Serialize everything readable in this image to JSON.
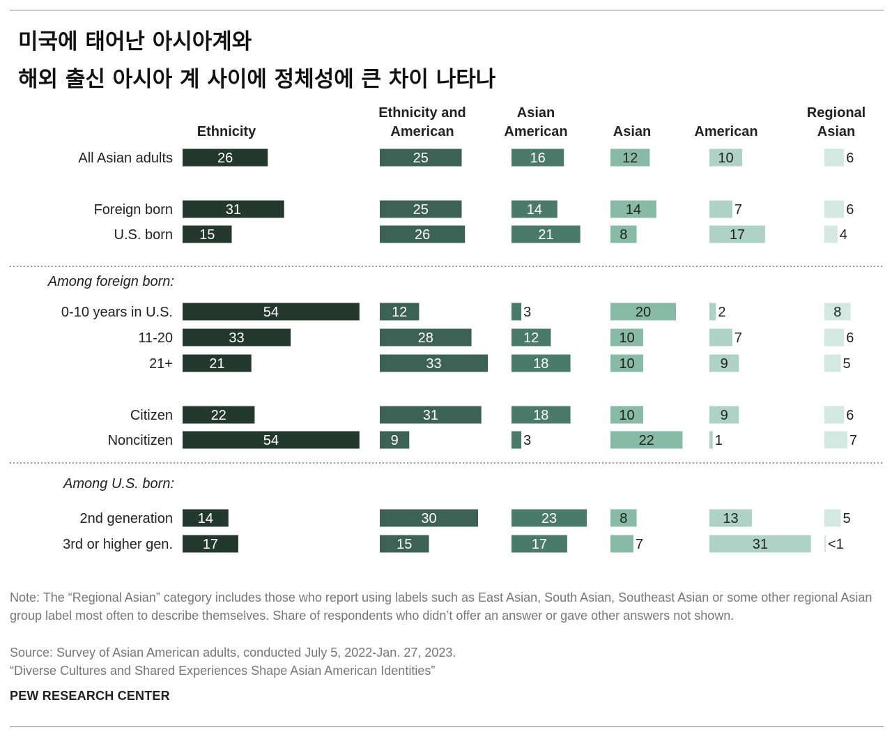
{
  "title_line1": "미국에 태어난 아시아계와",
  "title_line2": "해외 출신 아시아 계 사이에 정체성에 큰 차이 나타나",
  "chart_data": {
    "type": "bar",
    "columns": [
      {
        "name": "Ethnicity",
        "lines": [
          "Ethnicity"
        ],
        "color": "#23392f"
      },
      {
        "name": "Ethnicity and American",
        "lines": [
          "Ethnicity and",
          "American"
        ],
        "color": "#3c6155"
      },
      {
        "name": "Asian American",
        "lines": [
          "Asian",
          "American"
        ],
        "color": "#4a7a6a"
      },
      {
        "name": "Asian",
        "lines": [
          "Asian"
        ],
        "color": "#87baa7"
      },
      {
        "name": "American",
        "lines": [
          "American"
        ],
        "color": "#aed3c6"
      },
      {
        "name": "Regional Asian",
        "lines": [
          "Regional",
          "Asian"
        ],
        "color": "#d3e8e1"
      }
    ],
    "groups": [
      "",
      "",
      "Among foreign born:",
      "",
      "Among U.S. born:"
    ],
    "rows": [
      {
        "label": "All Asian adults",
        "group": 0,
        "values": [
          26,
          25,
          16,
          12,
          10,
          6
        ],
        "labels": [
          "26",
          "25",
          "16",
          "12",
          "10",
          "6"
        ]
      },
      {
        "label": "Foreign born",
        "group": 1,
        "values": [
          31,
          25,
          14,
          14,
          7,
          6
        ],
        "labels": [
          "31",
          "25",
          "14",
          "14",
          "7",
          "6"
        ]
      },
      {
        "label": "U.S. born",
        "group": 1,
        "values": [
          15,
          26,
          21,
          8,
          17,
          4
        ],
        "labels": [
          "15",
          "26",
          "21",
          "8",
          "17",
          "4"
        ]
      },
      {
        "label": "0-10 years in U.S.",
        "group": 2,
        "values": [
          54,
          12,
          3,
          20,
          2,
          8
        ],
        "labels": [
          "54",
          "12",
          "3",
          "20",
          "2",
          "8"
        ]
      },
      {
        "label": "11-20",
        "group": 2,
        "values": [
          33,
          28,
          12,
          10,
          7,
          6
        ],
        "labels": [
          "33",
          "28",
          "12",
          "10",
          "7",
          "6"
        ]
      },
      {
        "label": "21+",
        "group": 2,
        "values": [
          21,
          33,
          18,
          10,
          9,
          5
        ],
        "labels": [
          "21",
          "33",
          "18",
          "10",
          "9",
          "5"
        ]
      },
      {
        "label": "Citizen",
        "group": 3,
        "values": [
          22,
          31,
          18,
          10,
          9,
          6
        ],
        "labels": [
          "22",
          "31",
          "18",
          "10",
          "9",
          "6"
        ]
      },
      {
        "label": "Noncitizen",
        "group": 3,
        "values": [
          54,
          9,
          3,
          22,
          1,
          7
        ],
        "labels": [
          "54",
          "9",
          "3",
          "22",
          "1",
          "7"
        ]
      },
      {
        "label": "2nd generation",
        "group": 4,
        "values": [
          14,
          30,
          23,
          8,
          13,
          5
        ],
        "labels": [
          "14",
          "30",
          "23",
          "8",
          "13",
          "5"
        ]
      },
      {
        "label": "3rd or higher gen.",
        "group": 4,
        "values": [
          17,
          15,
          17,
          7,
          31,
          0.4
        ],
        "labels": [
          "17",
          "15",
          "17",
          "7",
          "31",
          "<1"
        ]
      }
    ]
  },
  "notes": {
    "note": "Note: The “Regional Asian” category includes those who report using labels such as East Asian, South Asian, Southeast Asian or some other regional Asian group label most often to describe themselves. Share of respondents who didn’t offer an answer or gave other answers not shown.",
    "source": "Source: Survey of Asian American adults, conducted July 5, 2022-Jan. 27, 2023.",
    "report": "“Diverse Cultures and Shared Experiences Shape Asian American Identities”",
    "brand": "PEW RESEARCH CENTER"
  }
}
